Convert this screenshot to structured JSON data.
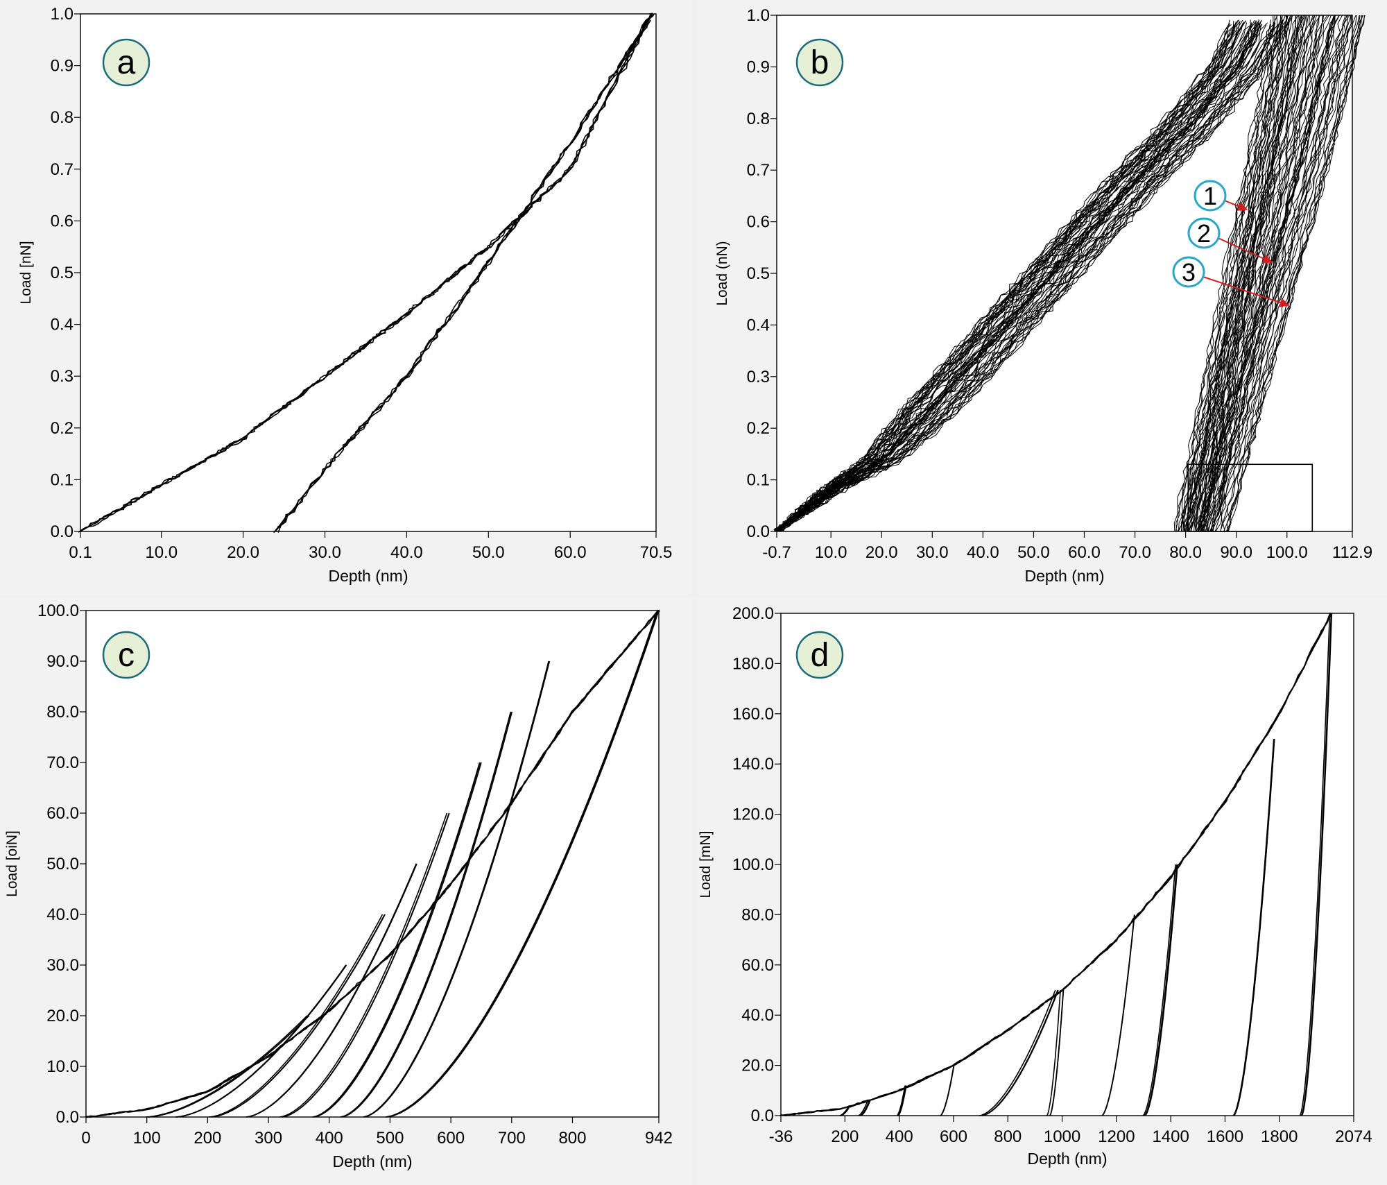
{
  "chart_data": [
    {
      "panel": "a",
      "type": "line",
      "xlabel": "Depth (nm)",
      "ylabel": "Load [nN]",
      "xlim": [
        0.1,
        70.5
      ],
      "ylim": [
        0.0,
        1.0
      ],
      "xticks": [
        0.1,
        10,
        20,
        30,
        40,
        50,
        60,
        70.5
      ],
      "xtick_labels": [
        "0.1",
        "10.0",
        "20.0",
        "30.0",
        "40.0",
        "50.0",
        "60.0",
        "70.5"
      ],
      "yticks": [
        0,
        0.1,
        0.2,
        0.3,
        0.4,
        0.5,
        0.6,
        0.7,
        0.8,
        0.9,
        1.0
      ],
      "ytick_labels": [
        "0.0",
        "0.1",
        "0.2",
        "0.3",
        "0.4",
        "0.5",
        "0.6",
        "0.7",
        "0.8",
        "0.9",
        "1.0"
      ],
      "grid": false,
      "series": [
        {
          "x": [
            0.1,
            10,
            20,
            30,
            40,
            50,
            60,
            70
          ],
          "y": [
            0.0,
            0.09,
            0.18,
            0.3,
            0.42,
            0.55,
            0.7,
            1.0
          ]
        },
        {
          "x": [
            24,
            30,
            40,
            50,
            60,
            70
          ],
          "y": [
            0.0,
            0.12,
            0.3,
            0.52,
            0.75,
            1.0
          ]
        }
      ]
    },
    {
      "panel": "b",
      "type": "line",
      "xlabel": "Depth (nm)",
      "ylabel": "Load (nN)",
      "xlim": [
        -0.7,
        112.9
      ],
      "ylim": [
        0.0,
        1.0
      ],
      "xticks": [
        -0.7,
        10,
        20,
        30,
        40,
        50,
        60,
        70,
        80,
        90,
        100,
        112.9
      ],
      "xtick_labels": [
        "-0.7",
        "10.0",
        "20.0",
        "30.0",
        "40.0",
        "50.0",
        "60.0",
        "70.0",
        "80.0",
        "90.0",
        "100.0",
        "112.9"
      ],
      "yticks": [
        0,
        0.1,
        0.2,
        0.3,
        0.4,
        0.5,
        0.6,
        0.7,
        0.8,
        0.9,
        1.0
      ],
      "ytick_labels": [
        "0.0",
        "0.1",
        "0.2",
        "0.3",
        "0.4",
        "0.5",
        "0.6",
        "0.7",
        "0.8",
        "0.9",
        "1.0"
      ],
      "grid": false,
      "annotations": [
        "1",
        "2",
        "3"
      ],
      "series": [
        {
          "x": [
            -0.7,
            10,
            20,
            30,
            40,
            50,
            60,
            70,
            80,
            90,
            95
          ],
          "y": [
            0.0,
            0.08,
            0.14,
            0.24,
            0.35,
            0.46,
            0.57,
            0.68,
            0.78,
            0.9,
            1.0
          ]
        },
        {
          "x": [
            80,
            85,
            90,
            95,
            100
          ],
          "y": [
            0.0,
            0.25,
            0.5,
            0.75,
            1.0
          ]
        },
        {
          "x": [
            82,
            88,
            94,
            100,
            106
          ],
          "y": [
            0.0,
            0.25,
            0.5,
            0.75,
            1.0
          ]
        },
        {
          "x": [
            85,
            92,
            99,
            106,
            112
          ],
          "y": [
            0.0,
            0.25,
            0.5,
            0.75,
            1.0
          ]
        }
      ]
    },
    {
      "panel": "c",
      "type": "line",
      "xlabel": "Depth (nm)",
      "ylabel": "Load [oiN]",
      "xlim": [
        0,
        942
      ],
      "ylim": [
        0.0,
        100.0
      ],
      "xticks": [
        0,
        100,
        200,
        300,
        400,
        500,
        600,
        700,
        800,
        942
      ],
      "xtick_labels": [
        "0",
        "100",
        "200",
        "300",
        "400",
        "500",
        "600",
        "700",
        "800",
        "942"
      ],
      "yticks": [
        0,
        10,
        20,
        30,
        40,
        50,
        60,
        70,
        80,
        90,
        100
      ],
      "ytick_labels": [
        "0.0",
        "10.0",
        "20.0",
        "30.0",
        "40.0",
        "50.0",
        "60.0",
        "70.0",
        "80.0",
        "90.0",
        "100.0"
      ],
      "grid": false,
      "loading_curve": {
        "x": [
          0,
          100,
          200,
          300,
          400,
          500,
          600,
          700,
          800,
          942
        ],
        "y": [
          0,
          1.5,
          5,
          12,
          21,
          32,
          46,
          62,
          80,
          100
        ]
      },
      "unloading_cycles": [
        {
          "peak_x": 365,
          "peak_y": 20,
          "end_x": 100
        },
        {
          "peak_x": 430,
          "peak_y": 30,
          "end_x": 150
        },
        {
          "peak_x": 490,
          "peak_y": 40,
          "end_x": 205
        },
        {
          "peak_x": 545,
          "peak_y": 50,
          "end_x": 265
        },
        {
          "peak_x": 595,
          "peak_y": 60,
          "end_x": 320
        },
        {
          "peak_x": 650,
          "peak_y": 70,
          "end_x": 375
        },
        {
          "peak_x": 700,
          "peak_y": 80,
          "end_x": 420
        },
        {
          "peak_x": 760,
          "peak_y": 90,
          "end_x": 455
        },
        {
          "peak_x": 942,
          "peak_y": 100,
          "end_x": 495
        }
      ]
    },
    {
      "panel": "d",
      "type": "line",
      "xlabel": "Depth (nm)",
      "ylabel": "Load [mN]",
      "xlim": [
        -36,
        2074
      ],
      "ylim": [
        0.0,
        200.0
      ],
      "xticks": [
        -36,
        200,
        400,
        600,
        800,
        1000,
        1200,
        1400,
        1600,
        1800,
        2074
      ],
      "xtick_labels": [
        "-36",
        "200",
        "400",
        "600",
        "800",
        "1000",
        "1200",
        "1400",
        "1600",
        "1800",
        "2074"
      ],
      "yticks": [
        0,
        20,
        40,
        60,
        80,
        100,
        120,
        140,
        160,
        180,
        200
      ],
      "ytick_labels": [
        "0.0",
        "20.0",
        "40.0",
        "60.0",
        "80.0",
        "100.0",
        "120.0",
        "140.0",
        "160.0",
        "180.0",
        "200.0"
      ],
      "grid": false,
      "loading_curve": {
        "x": [
          -36,
          200,
          400,
          600,
          800,
          1000,
          1200,
          1400,
          1600,
          1800,
          1990
        ],
        "y": [
          0,
          3,
          10,
          20,
          34,
          50,
          70,
          95,
          125,
          160,
          200
        ]
      },
      "unloading_cycles": [
        {
          "peak_x": 210,
          "peak_y": 3,
          "end_x": 180
        },
        {
          "peak_x": 290,
          "peak_y": 6,
          "end_x": 255
        },
        {
          "peak_x": 420,
          "peak_y": 12,
          "end_x": 390
        },
        {
          "peak_x": 600,
          "peak_y": 20,
          "end_x": 550
        },
        {
          "peak_x": 980,
          "peak_y": 50,
          "end_x": 700
        },
        {
          "peak_x": 1000,
          "peak_y": 50,
          "end_x": 950
        },
        {
          "peak_x": 1270,
          "peak_y": 80,
          "end_x": 1150
        },
        {
          "peak_x": 1420,
          "peak_y": 100,
          "end_x": 1300
        },
        {
          "peak_x": 1780,
          "peak_y": 150,
          "end_x": 1630
        },
        {
          "peak_x": 1990,
          "peak_y": 200,
          "end_x": 1880
        }
      ]
    }
  ]
}
